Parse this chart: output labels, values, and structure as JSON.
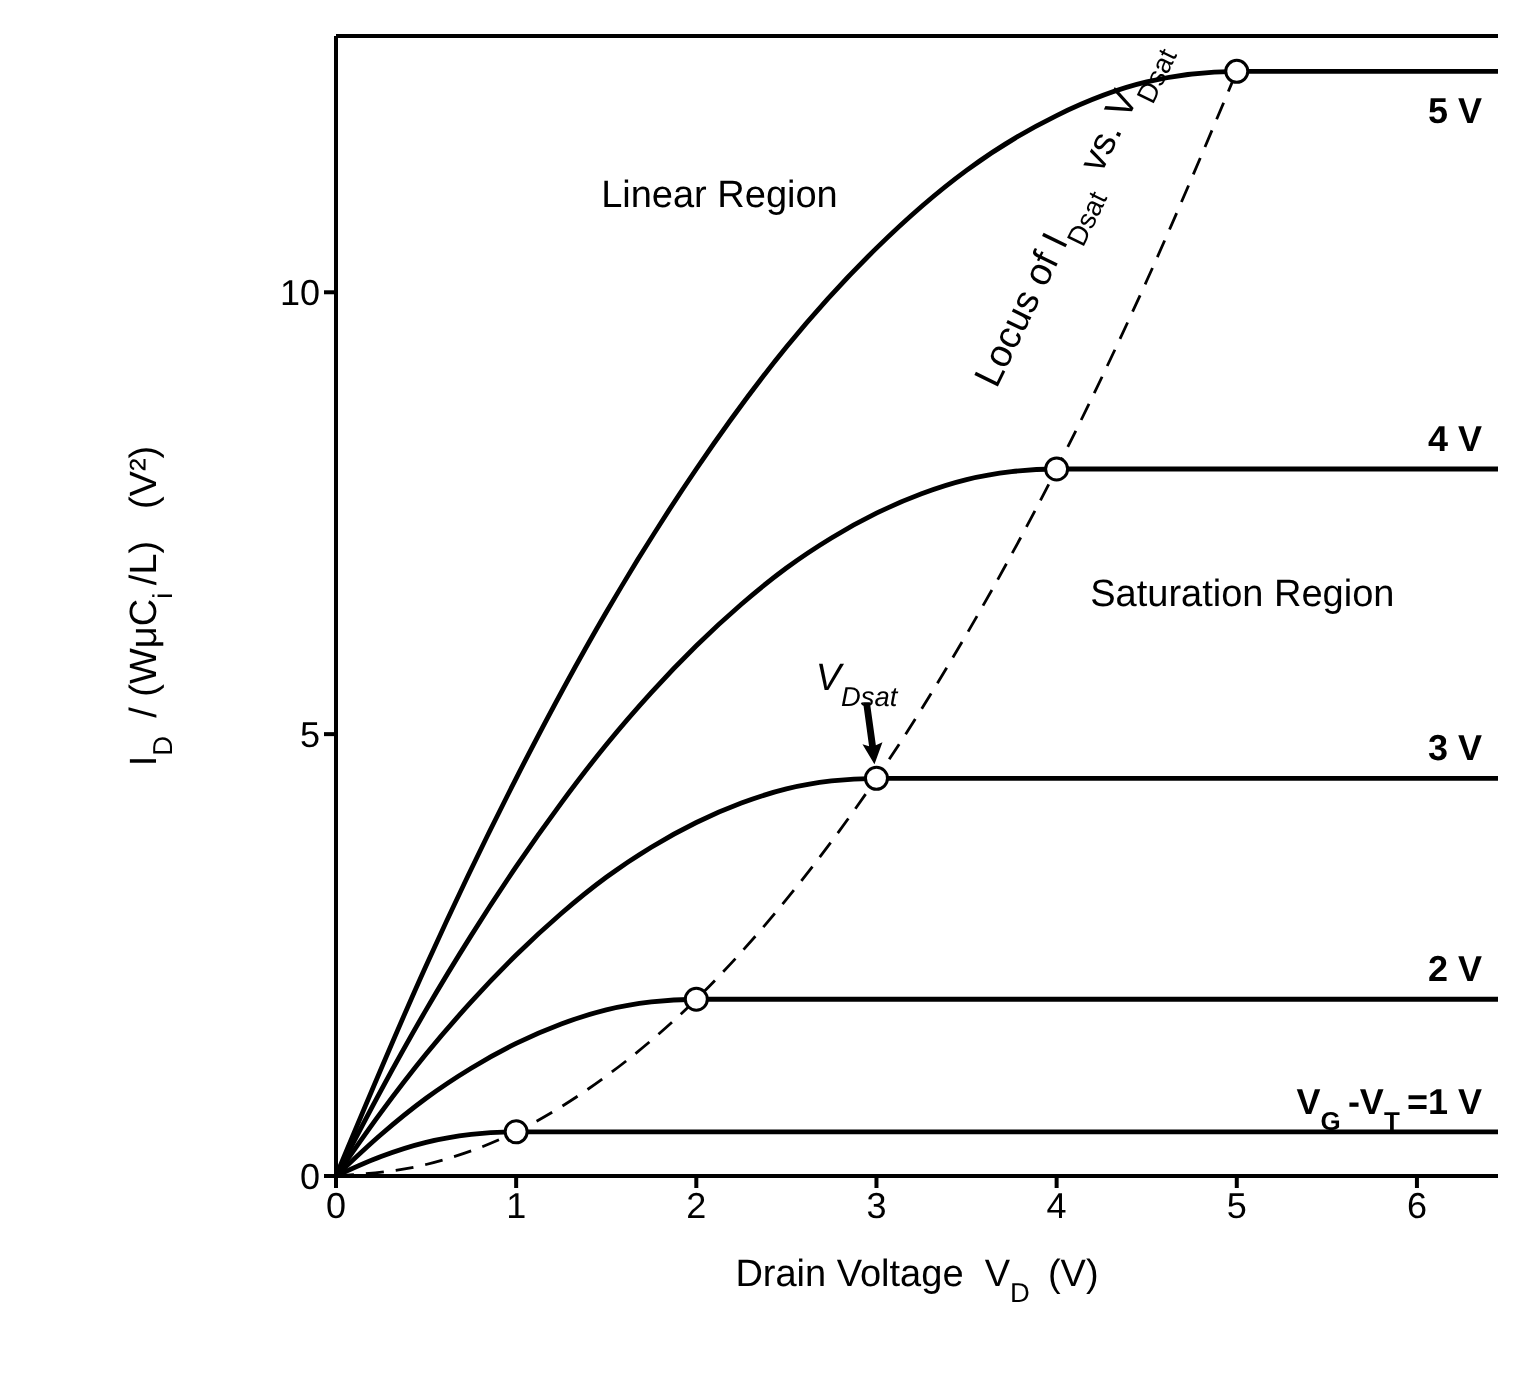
{
  "chart_data": {
    "type": "line",
    "xlabel": "Drain Voltage  V$_{D}$ (V)",
    "ylabel": "I$_{D}$ / (WμC$_{i}$/L)   (V²)",
    "xlim": [
      0,
      6.45
    ],
    "xticks": [
      0,
      1,
      2,
      3,
      4,
      5,
      6
    ],
    "ylim": [
      0,
      12.9
    ],
    "yticks": [
      0,
      5,
      10
    ],
    "grid": false,
    "series": [
      {
        "name": "V$_{G}$-V$_{T}$=1 V",
        "color": "#000000",
        "x": [
          0,
          0.25,
          0.5,
          0.75,
          1,
          6.45
        ],
        "values": [
          0,
          0.22,
          0.38,
          0.47,
          0.5,
          0.5
        ]
      },
      {
        "name": "2 V",
        "color": "#000000",
        "x": [
          0,
          0.25,
          0.5,
          0.75,
          1,
          1.25,
          1.5,
          1.75,
          2,
          6.45
        ],
        "values": [
          0,
          0.47,
          0.88,
          1.22,
          1.5,
          1.72,
          1.88,
          1.97,
          2,
          2
        ]
      },
      {
        "name": "3 V",
        "color": "#000000",
        "x": [
          0,
          0.25,
          0.5,
          0.75,
          1,
          1.25,
          1.5,
          1.75,
          2,
          2.25,
          2.5,
          2.75,
          3,
          6.45
        ],
        "values": [
          0,
          0.72,
          1.38,
          1.97,
          2.5,
          2.97,
          3.38,
          3.72,
          4,
          4.22,
          4.38,
          4.47,
          4.5,
          4.5
        ]
      },
      {
        "name": "4 V",
        "color": "#000000",
        "x": [
          0,
          0.25,
          0.5,
          0.75,
          1,
          1.25,
          1.5,
          1.75,
          2,
          2.25,
          2.5,
          2.75,
          3,
          3.25,
          3.5,
          3.75,
          4,
          6.45
        ],
        "values": [
          0,
          0.97,
          1.88,
          2.72,
          3.5,
          4.22,
          4.88,
          5.47,
          6,
          6.47,
          6.88,
          7.22,
          7.5,
          7.72,
          7.88,
          7.97,
          8,
          8
        ]
      },
      {
        "name": "5 V",
        "color": "#000000",
        "x": [
          0,
          0.5,
          1,
          1.5,
          2,
          2.5,
          3,
          3.5,
          4,
          4.5,
          5,
          6.45
        ],
        "values": [
          0,
          2.38,
          4.5,
          6.38,
          8,
          9.38,
          10.5,
          11.38,
          12,
          12.38,
          12.5,
          12.5
        ]
      },
      {
        "color": "#000000",
        "line_style": "dashed",
        "x": [
          0,
          0.5,
          1,
          1.5,
          2,
          2.5,
          3,
          3.5,
          4,
          4.5,
          5
        ],
        "values": [
          0,
          0.13,
          0.5,
          1.13,
          2,
          3.13,
          4.5,
          6.13,
          8,
          10.13,
          12.5
        ]
      },
      {
        "type": "scatter",
        "marker": "circle",
        "color": "#000000",
        "x": [
          1,
          2,
          3,
          4,
          5
        ],
        "values": [
          0.5,
          2,
          4.5,
          8,
          12.5
        ]
      }
    ],
    "annotations": [
      "Linear Region",
      "Saturation Region",
      "Locus of I$_{Dsat}$ vs. V$_{Dsat}$",
      {
        "text": "V$_{Dsat}$",
        "x": 3,
        "y": 4.5
      }
    ]
  }
}
